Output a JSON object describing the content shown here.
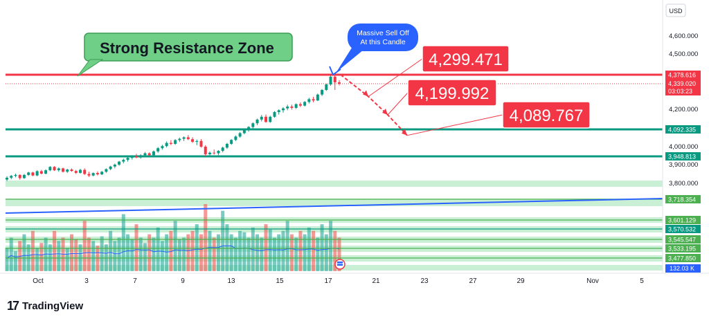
{
  "chart_data": {
    "type": "candlestick",
    "currency": "USD",
    "x_tick_labels": [
      "Oct",
      "3",
      "7",
      "9",
      "13",
      "15",
      "17",
      "21",
      "23",
      "27",
      "29",
      "Nov",
      "5"
    ],
    "y_tick_labels": [
      "4,600.000",
      "4,500.000",
      "4,200.000",
      "4,000.000",
      "3,900.000",
      "3,800.000"
    ],
    "ylim": [
      3440,
      4650
    ],
    "candles": [
      [
        3820,
        3838,
        3812,
        3830
      ],
      [
        3830,
        3845,
        3822,
        3840
      ],
      [
        3840,
        3852,
        3832,
        3845
      ],
      [
        3845,
        3848,
        3820,
        3828
      ],
      [
        3828,
        3850,
        3824,
        3845
      ],
      [
        3845,
        3862,
        3840,
        3858
      ],
      [
        3858,
        3862,
        3838,
        3842
      ],
      [
        3842,
        3870,
        3838,
        3865
      ],
      [
        3865,
        3872,
        3848,
        3852
      ],
      [
        3852,
        3875,
        3848,
        3870
      ],
      [
        3870,
        3892,
        3865,
        3888
      ],
      [
        3888,
        3892,
        3866,
        3870
      ],
      [
        3870,
        3885,
        3862,
        3880
      ],
      [
        3880,
        3884,
        3858,
        3862
      ],
      [
        3862,
        3878,
        3856,
        3874
      ],
      [
        3874,
        3880,
        3862,
        3866
      ],
      [
        3866,
        3872,
        3850,
        3856
      ],
      [
        3856,
        3878,
        3852,
        3872
      ],
      [
        3872,
        3880,
        3845,
        3850
      ],
      [
        3850,
        3862,
        3834,
        3842
      ],
      [
        3842,
        3858,
        3838,
        3855
      ],
      [
        3855,
        3864,
        3842,
        3848
      ],
      [
        3848,
        3866,
        3844,
        3862
      ],
      [
        3862,
        3880,
        3856,
        3876
      ],
      [
        3876,
        3894,
        3870,
        3890
      ],
      [
        3890,
        3906,
        3880,
        3900
      ],
      [
        3900,
        3922,
        3894,
        3918
      ],
      [
        3918,
        3935,
        3908,
        3928
      ],
      [
        3928,
        3945,
        3918,
        3940
      ],
      [
        3940,
        3955,
        3930,
        3948
      ],
      [
        3948,
        3962,
        3938,
        3942
      ],
      [
        3942,
        3960,
        3935,
        3955
      ],
      [
        3955,
        3972,
        3948,
        3965
      ],
      [
        3965,
        3970,
        3948,
        3955
      ],
      [
        3955,
        3980,
        3950,
        3975
      ],
      [
        3975,
        3998,
        3968,
        3992
      ],
      [
        3992,
        4010,
        3984,
        4003
      ],
      [
        4003,
        4028,
        3996,
        4020
      ],
      [
        4020,
        4035,
        4008,
        4015
      ],
      [
        4015,
        4040,
        4010,
        4035
      ],
      [
        4035,
        4048,
        4025,
        4042
      ],
      [
        4042,
        4055,
        4030,
        4050
      ],
      [
        4050,
        4062,
        4035,
        4040
      ],
      [
        4040,
        4050,
        4020,
        4026
      ],
      [
        4026,
        4038,
        4008,
        4030
      ],
      [
        4030,
        4040,
        3995,
        4000
      ],
      [
        4000,
        4008,
        3950,
        3960
      ],
      [
        3960,
        3975,
        3950,
        3968
      ],
      [
        3968,
        3985,
        3958,
        3965
      ],
      [
        3965,
        3982,
        3955,
        3978
      ],
      [
        3978,
        4000,
        3970,
        3995
      ],
      [
        3995,
        4020,
        3988,
        4015
      ],
      [
        4015,
        4040,
        4010,
        4036
      ],
      [
        4036,
        4060,
        4030,
        4054
      ],
      [
        4054,
        4078,
        4048,
        4072
      ],
      [
        4072,
        4098,
        4066,
        4092
      ],
      [
        4092,
        4110,
        4080,
        4105
      ],
      [
        4105,
        4130,
        4095,
        4125
      ],
      [
        4125,
        4150,
        4115,
        4145
      ],
      [
        4145,
        4170,
        4135,
        4160
      ],
      [
        4160,
        4172,
        4128,
        4132
      ],
      [
        4132,
        4165,
        4128,
        4160
      ],
      [
        4160,
        4190,
        4155,
        4185
      ],
      [
        4185,
        4200,
        4172,
        4195
      ],
      [
        4195,
        4212,
        4182,
        4205
      ],
      [
        4205,
        4225,
        4195,
        4215
      ],
      [
        4215,
        4225,
        4198,
        4208
      ],
      [
        4208,
        4232,
        4202,
        4228
      ],
      [
        4228,
        4238,
        4212,
        4220
      ],
      [
        4220,
        4245,
        4215,
        4240
      ],
      [
        4240,
        4262,
        4232,
        4255
      ],
      [
        4255,
        4268,
        4238,
        4248
      ],
      [
        4248,
        4285,
        4245,
        4280
      ],
      [
        4280,
        4310,
        4272,
        4305
      ],
      [
        4305,
        4340,
        4300,
        4335
      ],
      [
        4335,
        4380,
        4328,
        4370
      ],
      [
        4370,
        4378,
        4305,
        4345
      ],
      [
        4345,
        4355,
        4330,
        4339
      ]
    ],
    "volume_pct": [
      0.35,
      0.5,
      0.3,
      0.45,
      0.55,
      0.4,
      0.6,
      0.35,
      0.42,
      0.5,
      0.4,
      0.6,
      0.45,
      0.5,
      0.35,
      0.55,
      0.48,
      0.4,
      0.75,
      0.5,
      0.45,
      0.38,
      0.52,
      0.4,
      0.6,
      0.45,
      0.5,
      0.85,
      0.55,
      0.48,
      0.7,
      0.5,
      0.42,
      0.55,
      0.5,
      0.65,
      0.45,
      0.55,
      0.6,
      0.75,
      0.48,
      0.5,
      0.55,
      0.6,
      0.7,
      0.55,
      1.0,
      0.6,
      0.5,
      0.55,
      0.9,
      0.7,
      0.55,
      0.5,
      0.6,
      0.58,
      0.5,
      0.65,
      0.55,
      0.5,
      0.7,
      0.62,
      0.5,
      0.55,
      0.6,
      0.75,
      0.55,
      0.5,
      0.6,
      0.55,
      0.65,
      0.6,
      0.5,
      0.7,
      0.55,
      0.75,
      0.6,
      0.5
    ],
    "horizontal_levels": [
      {
        "value": 4378.616,
        "label": "4,378.616",
        "color": "#f23645",
        "style": "resistance"
      },
      {
        "value": 4092.335,
        "label": "4,092.335",
        "color": "#089981",
        "style": "support"
      },
      {
        "value": 3948.813,
        "label": "3,948.813",
        "color": "#089981",
        "style": "support"
      },
      {
        "value": 3718.354,
        "label": "3,718.354",
        "color": "#4caf50",
        "style": "band"
      },
      {
        "value": 3601.129,
        "label": "3,601.129",
        "color": "#4caf50",
        "style": "band"
      },
      {
        "value": 3570.532,
        "label": "3,570.532",
        "color": "#089981",
        "style": "line"
      },
      {
        "value": 3545.547,
        "label": "3,545.547",
        "color": "#4caf50",
        "style": "band"
      },
      {
        "value": 3533.195,
        "label": "3,533.195",
        "color": "#4caf50",
        "style": "band"
      },
      {
        "value": 3477.85,
        "label": "3,477.850",
        "color": "#4caf50",
        "style": "band"
      }
    ],
    "current_price": {
      "value": 4339.02,
      "label": "4,339.020",
      "countdown": "03:03:23",
      "color": "#f23645"
    },
    "volume_label": {
      "label": "132.03 K",
      "color": "#2962ff"
    },
    "trendline": {
      "from_value": 3640,
      "to_value": 3722,
      "color": "#2962ff"
    },
    "targets": [
      {
        "label": "4,299.471",
        "value": 4299.471
      },
      {
        "label": "4,199.992",
        "value": 4199.992
      },
      {
        "label": "4,089.767",
        "value": 4089.767
      }
    ],
    "annotations": {
      "resistance_callout": "Strong Resistance Zone",
      "sell_callout_line1": "Massive Sell Off",
      "sell_callout_line2": "At this Candle"
    },
    "colors": {
      "up": "#089981",
      "down": "#f23645",
      "vol_up": "#26a69a",
      "vol_down": "#ef5350",
      "accent": "#2962ff",
      "callout_green": "#6fcf87"
    }
  },
  "branding": {
    "name": "TradingView"
  }
}
